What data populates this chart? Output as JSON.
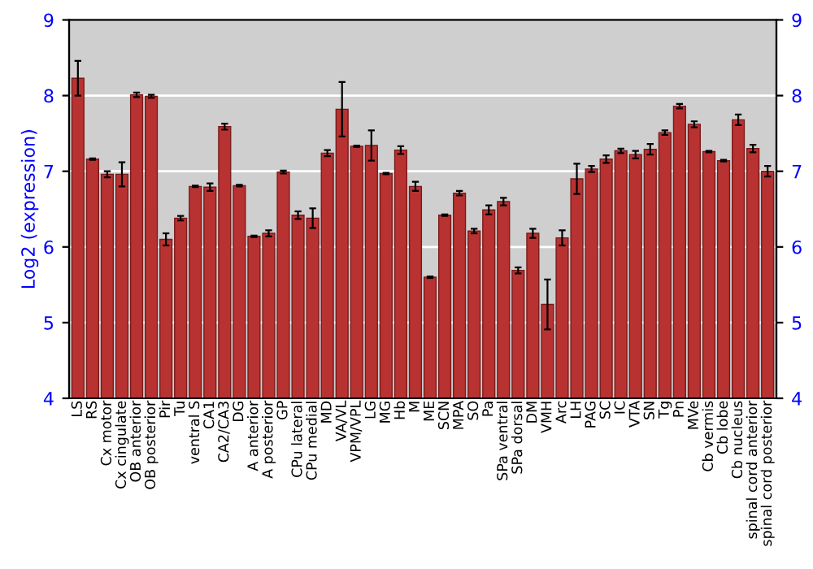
{
  "chart_data": {
    "type": "bar",
    "ylabel": "Log2 (expression)",
    "categories": [
      "LS",
      "RS",
      "Cx motor",
      "Cx cingulate",
      "OB anterior",
      "OB posterior",
      "Pir",
      "Tu",
      "ventral S",
      "CA1",
      "CA2/CA3",
      "DG",
      "A anterior",
      "A posterior",
      "GP",
      "CPu lateral",
      "CPu medial",
      "MD",
      "VA/VL",
      "VPM/VPL",
      "LG",
      "MG",
      "Hb",
      "M",
      "ME",
      "SCN",
      "MPA",
      "SO",
      "Pa",
      "SPa ventral",
      "SPa dorsal",
      "DM",
      "VMH",
      "Arc",
      "LH",
      "PAG",
      "SC",
      "IC",
      "VTA",
      "SN",
      "Tg",
      "Pn",
      "MVe",
      "Cb vermis",
      "Cb lobe",
      "Cb nucleus",
      "spinal cord anterior",
      "spinal cord posterior"
    ],
    "values": [
      8.23,
      7.16,
      6.96,
      6.96,
      8.01,
      7.99,
      6.1,
      6.38,
      6.8,
      6.79,
      7.59,
      6.81,
      6.14,
      6.18,
      6.99,
      6.42,
      6.38,
      7.24,
      7.82,
      7.33,
      7.34,
      6.97,
      7.28,
      6.8,
      5.6,
      6.42,
      6.71,
      6.21,
      6.49,
      6.6,
      5.69,
      6.18,
      5.24,
      6.12,
      6.9,
      7.03,
      7.16,
      7.27,
      7.22,
      7.29,
      7.51,
      7.86,
      7.62,
      7.26,
      7.14,
      7.68,
      7.3,
      7.0
    ],
    "errors": [
      0.23,
      0.01,
      0.04,
      0.16,
      0.03,
      0.02,
      0.08,
      0.03,
      0.01,
      0.05,
      0.04,
      0.01,
      0.01,
      0.04,
      0.02,
      0.05,
      0.13,
      0.04,
      0.36,
      0.01,
      0.2,
      0.01,
      0.05,
      0.06,
      0.01,
      0.01,
      0.03,
      0.03,
      0.06,
      0.05,
      0.04,
      0.06,
      0.33,
      0.1,
      0.2,
      0.04,
      0.05,
      0.03,
      0.05,
      0.07,
      0.03,
      0.03,
      0.04,
      0.01,
      0.01,
      0.07,
      0.05,
      0.07
    ],
    "color": "#b83232",
    "ylim": [
      4,
      9
    ],
    "yticks": [
      4,
      5,
      6,
      7,
      8,
      9
    ],
    "y2lim": [
      4,
      9
    ],
    "y2ticks": [
      4,
      5,
      6,
      7,
      8,
      9
    ],
    "grid": "y"
  }
}
